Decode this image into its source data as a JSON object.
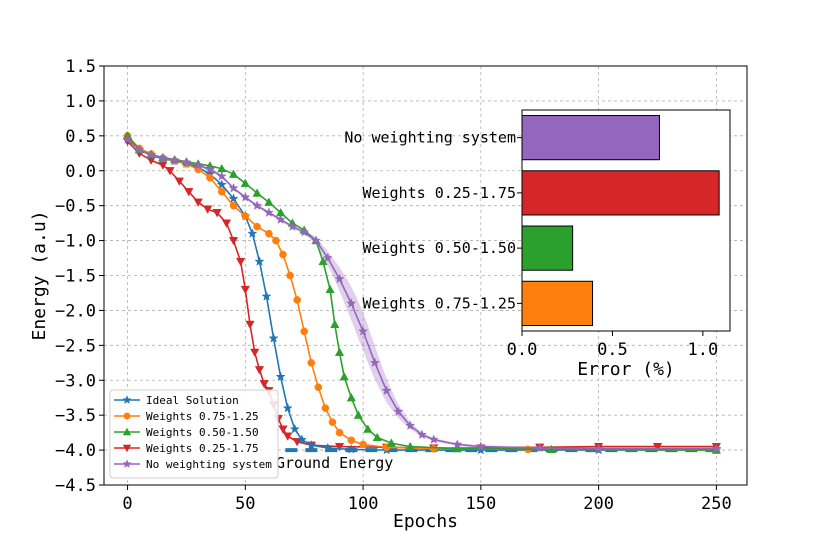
{
  "chart_data": [
    {
      "type": "line",
      "xlabel": "Epochs",
      "ylabel": "Energy (a.u)",
      "xlim": [
        -10,
        263
      ],
      "ylim": [
        -4.5,
        1.5
      ],
      "x_ticks": [
        0,
        50,
        100,
        150,
        200,
        250
      ],
      "x_tick_labels": [
        "0",
        "50",
        "100",
        "150",
        "200",
        "250"
      ],
      "y_ticks": [
        1.5,
        1.0,
        0.5,
        0.0,
        -0.5,
        -1.0,
        -1.5,
        -2.0,
        -2.5,
        -3.0,
        -3.5,
        -4.0,
        -4.5
      ],
      "y_tick_labels": [
        "1.5",
        "1.0",
        "0.5",
        "0.0",
        "−0.5",
        "−1.0",
        "−1.5",
        "−2.0",
        "−2.5",
        "−3.0",
        "−3.5",
        "−4.0",
        "−4.5"
      ],
      "grid": true,
      "legend_position": "bottom-left",
      "reference_line": {
        "label": "Ground Energy",
        "y": -4.0,
        "x_range": [
          67,
          250
        ],
        "color": "#1f77b4"
      },
      "series": [
        {
          "name": "Ideal Solution",
          "color": "#1f77b4",
          "marker": "star",
          "points": [
            [
              0,
              0.45
            ],
            [
              5,
              0.3
            ],
            [
              10,
              0.22
            ],
            [
              15,
              0.17
            ],
            [
              20,
              0.14
            ],
            [
              25,
              0.1
            ],
            [
              30,
              0.05
            ],
            [
              35,
              -0.05
            ],
            [
              40,
              -0.2
            ],
            [
              45,
              -0.4
            ],
            [
              50,
              -0.65
            ],
            [
              53,
              -0.9
            ],
            [
              56,
              -1.3
            ],
            [
              59,
              -1.8
            ],
            [
              62,
              -2.4
            ],
            [
              65,
              -2.95
            ],
            [
              68,
              -3.4
            ],
            [
              71,
              -3.7
            ],
            [
              74,
              -3.85
            ],
            [
              78,
              -3.93
            ],
            [
              85,
              -3.97
            ],
            [
              95,
              -3.99
            ],
            [
              110,
              -4.0
            ],
            [
              150,
              -4.0
            ],
            [
              200,
              -4.0
            ],
            [
              250,
              -4.0
            ]
          ]
        },
        {
          "name": "Weights 0.75-1.25",
          "color": "#ff7f0e",
          "marker": "circle",
          "points": [
            [
              0,
              0.5
            ],
            [
              5,
              0.32
            ],
            [
              10,
              0.24
            ],
            [
              15,
              0.18
            ],
            [
              20,
              0.14
            ],
            [
              25,
              0.1
            ],
            [
              30,
              0.02
            ],
            [
              35,
              -0.1
            ],
            [
              40,
              -0.3
            ],
            [
              45,
              -0.5
            ],
            [
              50,
              -0.65
            ],
            [
              55,
              -0.8
            ],
            [
              60,
              -0.9
            ],
            [
              63,
              -1.0
            ],
            [
              66,
              -1.2
            ],
            [
              69,
              -1.5
            ],
            [
              72,
              -1.85
            ],
            [
              75,
              -2.3
            ],
            [
              78,
              -2.75
            ],
            [
              81,
              -3.1
            ],
            [
              84,
              -3.4
            ],
            [
              87,
              -3.6
            ],
            [
              90,
              -3.75
            ],
            [
              95,
              -3.86
            ],
            [
              100,
              -3.92
            ],
            [
              110,
              -3.96
            ],
            [
              130,
              -3.98
            ],
            [
              170,
              -3.99
            ],
            [
              250,
              -4.0
            ]
          ]
        },
        {
          "name": "Weights 0.50-1.50",
          "color": "#2ca02c",
          "marker": "triangle-up",
          "points": [
            [
              0,
              0.5
            ],
            [
              5,
              0.3
            ],
            [
              10,
              0.23
            ],
            [
              15,
              0.19
            ],
            [
              20,
              0.16
            ],
            [
              25,
              0.13
            ],
            [
              30,
              0.1
            ],
            [
              35,
              0.07
            ],
            [
              40,
              0.03
            ],
            [
              45,
              -0.05
            ],
            [
              50,
              -0.18
            ],
            [
              55,
              -0.32
            ],
            [
              60,
              -0.45
            ],
            [
              65,
              -0.6
            ],
            [
              70,
              -0.75
            ],
            [
              75,
              -0.85
            ],
            [
              80,
              -1.0
            ],
            [
              83,
              -1.3
            ],
            [
              86,
              -1.7
            ],
            [
              88,
              -2.2
            ],
            [
              90,
              -2.6
            ],
            [
              92,
              -2.95
            ],
            [
              95,
              -3.25
            ],
            [
              98,
              -3.5
            ],
            [
              102,
              -3.7
            ],
            [
              106,
              -3.82
            ],
            [
              112,
              -3.9
            ],
            [
              120,
              -3.95
            ],
            [
              140,
              -3.98
            ],
            [
              180,
              -3.99
            ],
            [
              250,
              -4.0
            ]
          ]
        },
        {
          "name": "Weights 0.25-1.75",
          "color": "#d62728",
          "marker": "triangle-down",
          "points": [
            [
              0,
              0.42
            ],
            [
              5,
              0.25
            ],
            [
              10,
              0.15
            ],
            [
              15,
              0.08
            ],
            [
              18,
              0.0
            ],
            [
              22,
              -0.15
            ],
            [
              26,
              -0.3
            ],
            [
              30,
              -0.45
            ],
            [
              34,
              -0.55
            ],
            [
              38,
              -0.6
            ],
            [
              42,
              -0.75
            ],
            [
              45,
              -1.0
            ],
            [
              48,
              -1.3
            ],
            [
              50,
              -1.7
            ],
            [
              52,
              -2.2
            ],
            [
              54,
              -2.6
            ],
            [
              56,
              -2.85
            ],
            [
              58,
              -3.05
            ],
            [
              60,
              -3.15
            ],
            [
              62,
              -3.35
            ],
            [
              64,
              -3.55
            ],
            [
              66,
              -3.7
            ],
            [
              68,
              -3.8
            ],
            [
              72,
              -3.88
            ],
            [
              78,
              -3.93
            ],
            [
              90,
              -3.95
            ],
            [
              110,
              -3.96
            ],
            [
              130,
              -3.97
            ],
            [
              150,
              -3.97
            ],
            [
              175,
              -3.96
            ],
            [
              200,
              -3.95
            ],
            [
              225,
              -3.95
            ],
            [
              250,
              -3.95
            ]
          ]
        },
        {
          "name": "No weighting system",
          "color": "#9467bd",
          "marker": "star",
          "points": [
            [
              0,
              0.45
            ],
            [
              5,
              0.3
            ],
            [
              10,
              0.23
            ],
            [
              15,
              0.18
            ],
            [
              20,
              0.15
            ],
            [
              25,
              0.12
            ],
            [
              30,
              0.08
            ],
            [
              35,
              0.02
            ],
            [
              40,
              -0.08
            ],
            [
              45,
              -0.25
            ],
            [
              50,
              -0.38
            ],
            [
              55,
              -0.5
            ],
            [
              60,
              -0.6
            ],
            [
              65,
              -0.7
            ],
            [
              70,
              -0.8
            ],
            [
              75,
              -0.88
            ],
            [
              80,
              -1.0
            ],
            [
              85,
              -1.25
            ],
            [
              90,
              -1.55
            ],
            [
              95,
              -1.9
            ],
            [
              100,
              -2.3
            ],
            [
              105,
              -2.75
            ],
            [
              110,
              -3.15
            ],
            [
              115,
              -3.45
            ],
            [
              120,
              -3.65
            ],
            [
              125,
              -3.78
            ],
            [
              130,
              -3.85
            ],
            [
              140,
              -3.92
            ],
            [
              150,
              -3.95
            ],
            [
              175,
              -3.97
            ],
            [
              200,
              -3.98
            ],
            [
              250,
              -3.98
            ]
          ]
        }
      ]
    },
    {
      "type": "bar",
      "orientation": "horizontal",
      "xlabel": "Error (%)",
      "xlim": [
        0,
        1.15
      ],
      "x_ticks": [
        0.0,
        0.5,
        1.0
      ],
      "x_tick_labels": [
        "0.0",
        "0.5",
        "1.0"
      ],
      "categories": [
        "No weighting system",
        "Weights 0.25-1.75",
        "Weights 0.50-1.50",
        "Weights 0.75-1.25"
      ],
      "values": [
        0.76,
        1.09,
        0.28,
        0.39
      ],
      "colors": [
        "#9467bd",
        "#d62728",
        "#2ca02c",
        "#ff7f0e"
      ]
    }
  ]
}
